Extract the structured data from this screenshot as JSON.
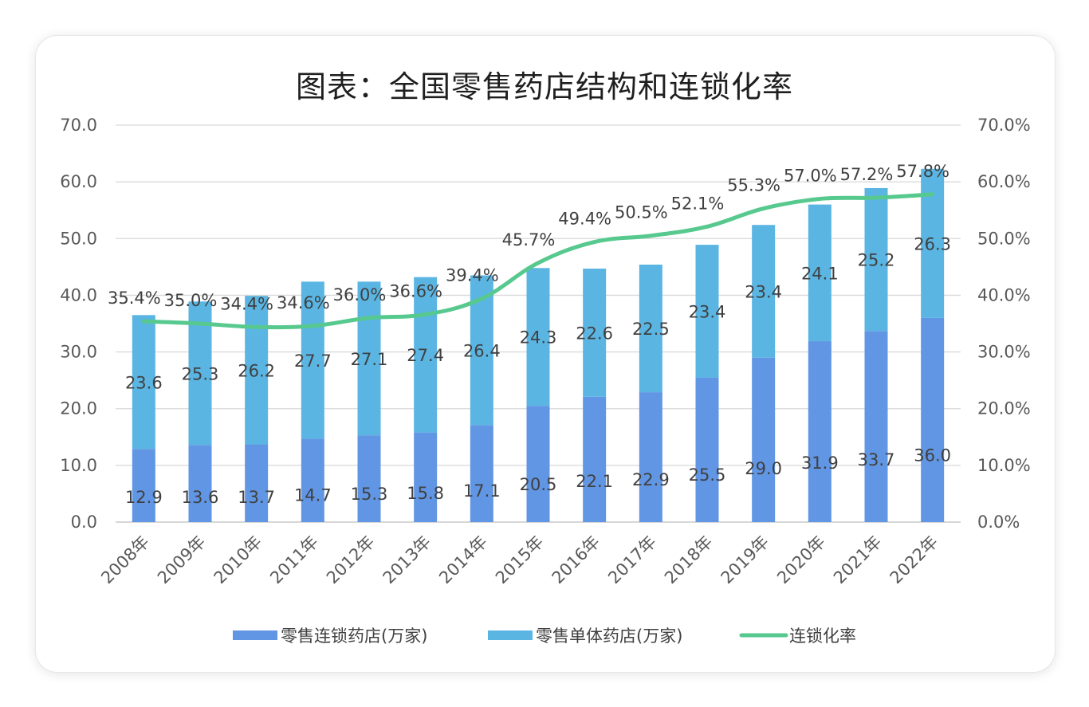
{
  "chart_data": {
    "type": "bar",
    "title": "图表：全国零售药店结构和连锁化率",
    "categories": [
      "2008年",
      "2009年",
      "2010年",
      "2011年",
      "2012年",
      "2013年",
      "2014年",
      "2015年",
      "2016年",
      "2017年",
      "2018年",
      "2019年",
      "2020年",
      "2021年",
      "2022年"
    ],
    "series": [
      {
        "name": "零售连锁药店(万家)",
        "kind": "bar",
        "axis": "left",
        "color": "#6196E4",
        "values": [
          12.9,
          13.6,
          13.7,
          14.7,
          15.3,
          15.8,
          17.1,
          20.5,
          22.1,
          22.9,
          25.5,
          29.0,
          31.9,
          33.7,
          36.0
        ],
        "labels": [
          "12.9",
          "13.6",
          "13.7",
          "14.7",
          "15.3",
          "15.8",
          "17.1",
          "20.5",
          "22.1",
          "22.9",
          "25.5",
          "29.0",
          "31.9",
          "33.7",
          "36.0"
        ]
      },
      {
        "name": "零售单体药店(万家)",
        "kind": "bar",
        "axis": "left",
        "color": "#5AB5E3",
        "values": [
          23.6,
          25.3,
          26.2,
          27.7,
          27.1,
          27.4,
          26.4,
          24.3,
          22.6,
          22.5,
          23.4,
          23.4,
          24.1,
          25.2,
          26.3
        ],
        "labels": [
          "23.6",
          "25.3",
          "26.2",
          "27.7",
          "27.1",
          "27.4",
          "26.4",
          "24.3",
          "22.6",
          "22.5",
          "23.4",
          "23.4",
          "24.1",
          "25.2",
          "26.3"
        ]
      },
      {
        "name": "连锁化率",
        "kind": "line",
        "axis": "right",
        "color": "#57C98F",
        "values": [
          35.4,
          35.0,
          34.4,
          34.6,
          36.0,
          36.6,
          39.4,
          45.7,
          49.4,
          50.5,
          52.1,
          55.3,
          57.0,
          57.2,
          57.8
        ],
        "labels": [
          "35.4%",
          "35.0%",
          "34.4%",
          "34.6%",
          "36.0%",
          "36.6%",
          "39.4%",
          "45.7%",
          "49.4%",
          "50.5%",
          "52.1%",
          "55.3%",
          "57.0%",
          "57.2%",
          "57.8%"
        ]
      }
    ],
    "stacked": true,
    "ylim": [
      0,
      70
    ],
    "y2lim": [
      0,
      70
    ],
    "yticks": [
      "0.0",
      "10.0",
      "20.0",
      "30.0",
      "40.0",
      "50.0",
      "60.0",
      "70.0"
    ],
    "y2ticks": [
      "0.0%",
      "10.0%",
      "20.0%",
      "30.0%",
      "40.0%",
      "50.0%",
      "60.0%",
      "70.0%"
    ],
    "grid": true,
    "legend": "bottom"
  }
}
